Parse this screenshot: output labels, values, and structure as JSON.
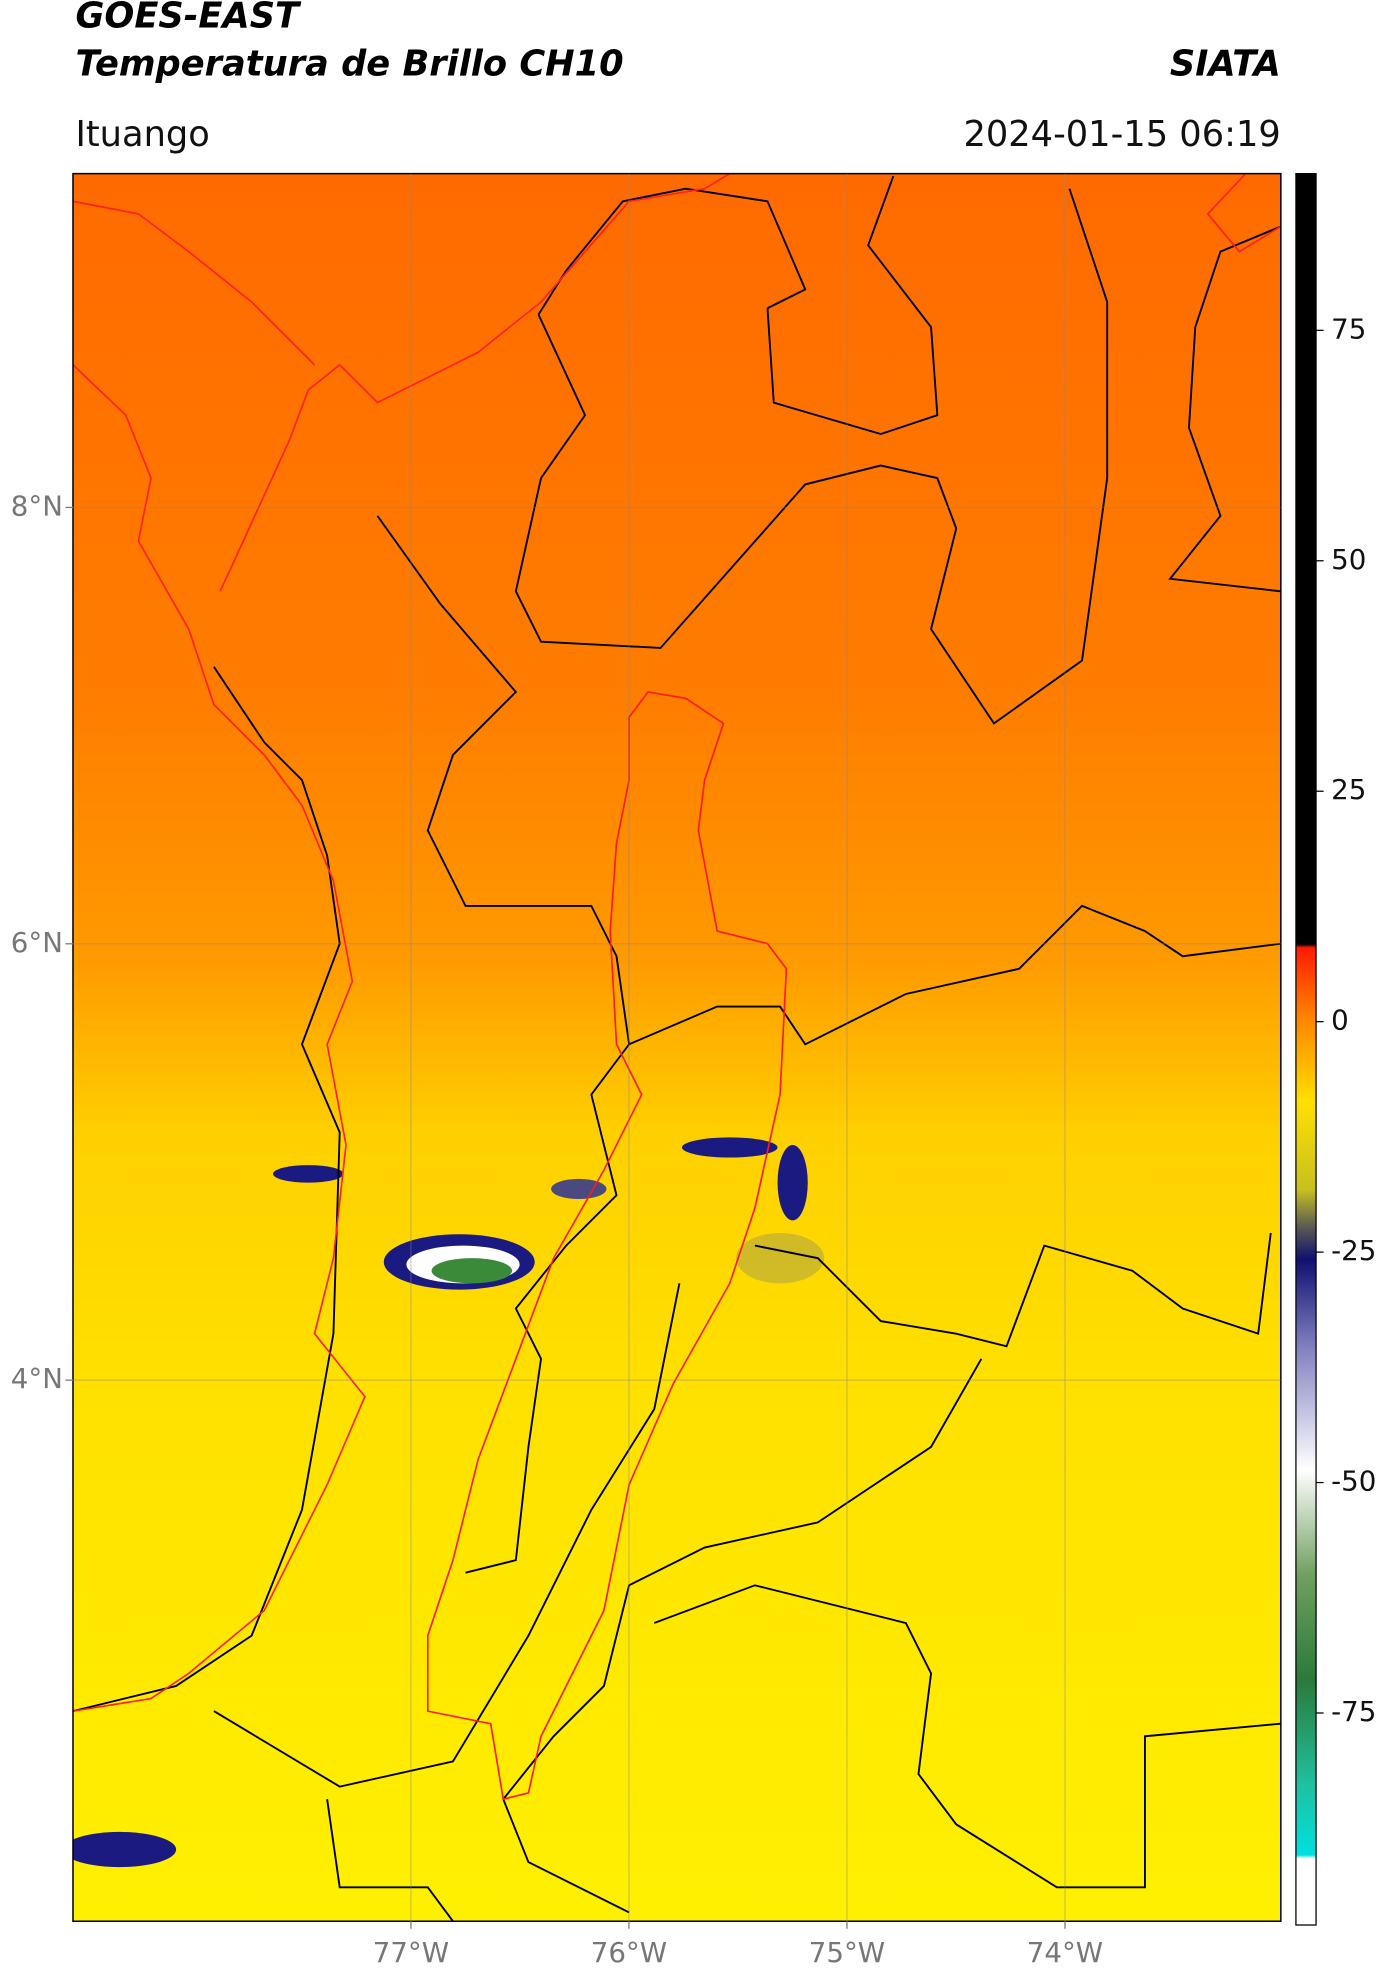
{
  "header": {
    "title_line1": "GOES-EAST",
    "title_line2": "Temperatura de Brillo CH10",
    "brand": "SIATA",
    "location": "Ituango",
    "timestamp": "2024-01-15 06:19"
  },
  "map": {
    "xlim": [
      -78.55,
      -73.01
    ],
    "ylim": [
      1.52,
      9.53
    ],
    "xticks": [
      {
        "value": -77,
        "label": "77°W"
      },
      {
        "value": -76,
        "label": "76°W"
      },
      {
        "value": -75,
        "label": "75°W"
      },
      {
        "value": -74,
        "label": "74°W"
      }
    ],
    "yticks": [
      {
        "value": 8,
        "label": "8°N"
      },
      {
        "value": 6,
        "label": "6°N"
      },
      {
        "value": 4,
        "label": "4°N"
      }
    ],
    "grid": true
  },
  "colorbar": {
    "clim": [
      -98,
      92
    ],
    "ticks": [
      75,
      50,
      25,
      0,
      -25,
      -50,
      -75
    ]
  }
}
